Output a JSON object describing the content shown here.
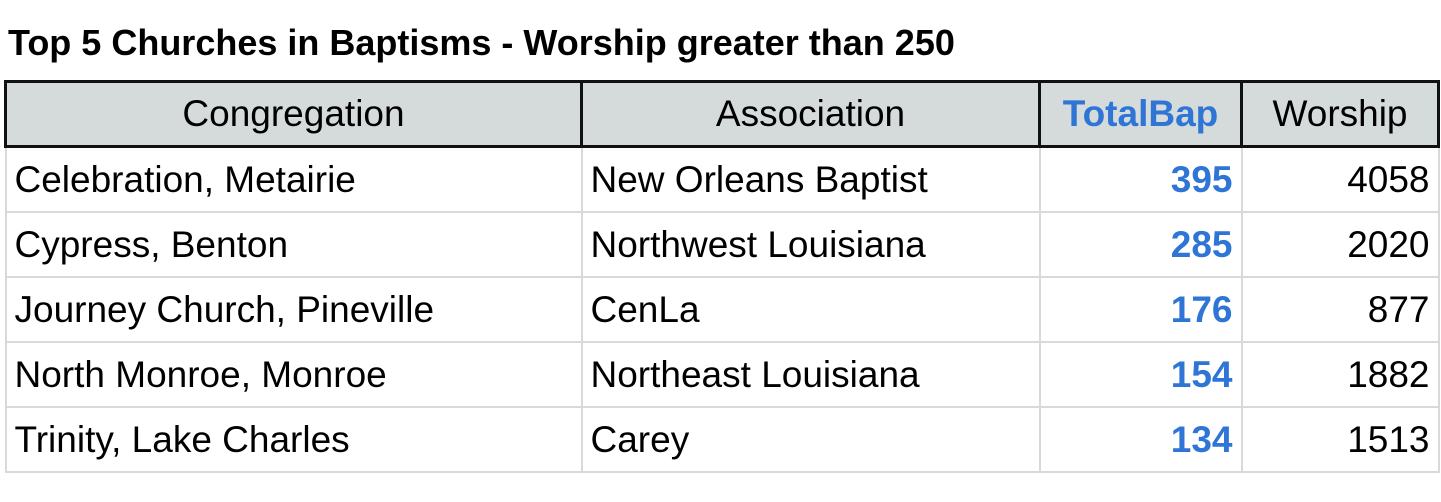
{
  "title": "Top 5 Churches in Baptisms - Worship greater than 250",
  "table": {
    "header": [
      "Congregation",
      "Association",
      "TotalBap",
      "Worship"
    ],
    "rows": [
      [
        "Celebration, Metairie",
        "New Orleans Baptist",
        395,
        4058
      ],
      [
        "Cypress, Benton",
        "Northwest Louisiana",
        285,
        2020
      ],
      [
        "Journey Church, Pineville",
        "CenLa",
        176,
        877
      ],
      [
        "North Monroe, Monroe",
        "Northeast Louisiana",
        154,
        1882
      ],
      [
        "Trinity, Lake Charles",
        "Carey",
        134,
        1513
      ]
    ]
  }
}
